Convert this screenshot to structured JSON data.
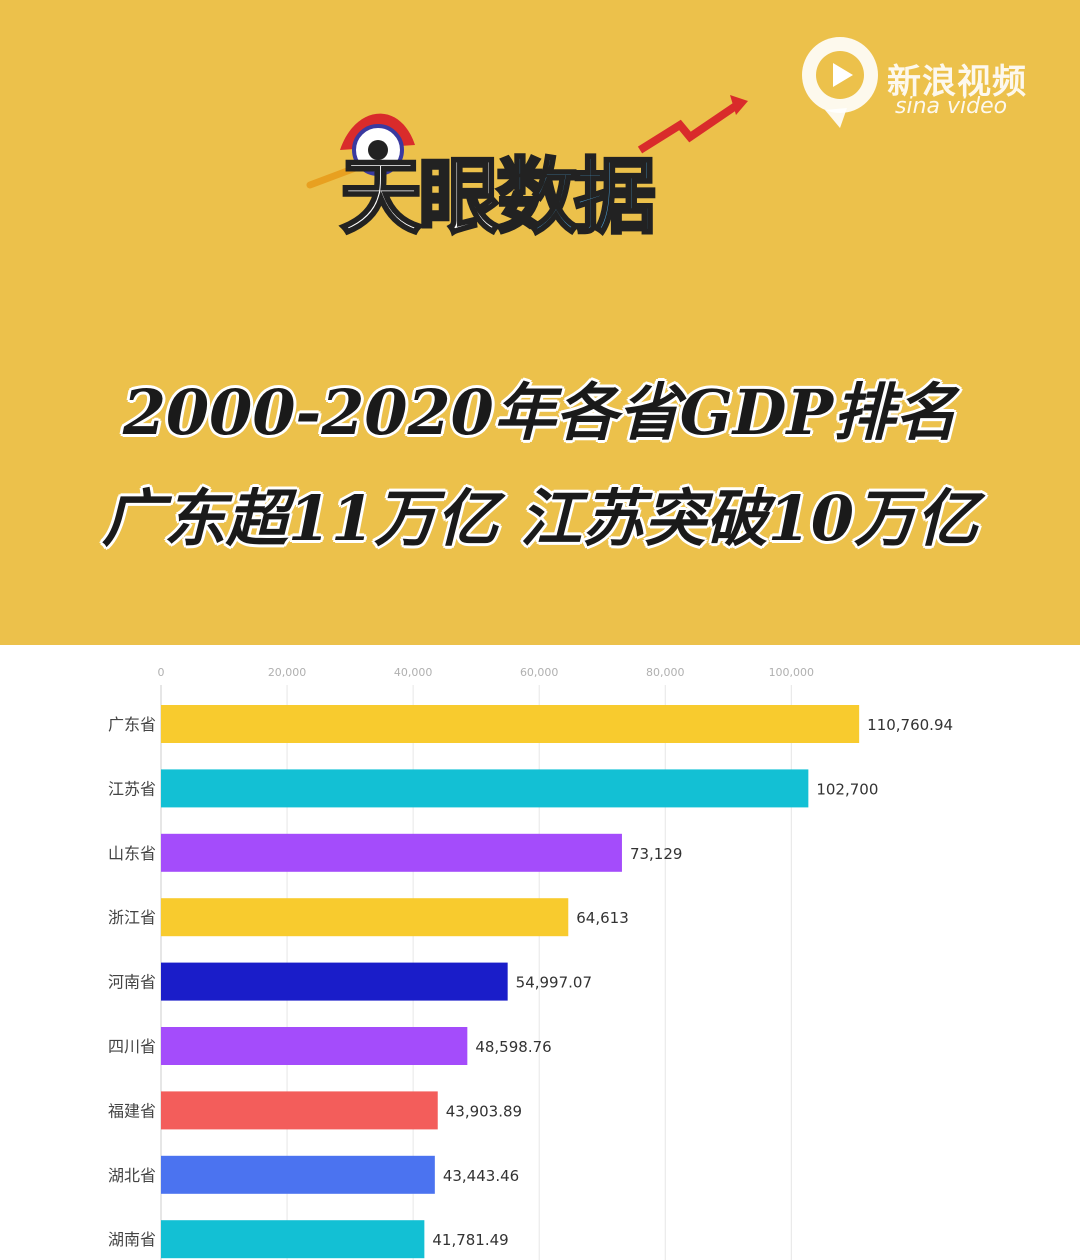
{
  "header": {
    "watermark_cn": "新浪视频",
    "watermark_en": "sina video",
    "logo_text_1": "天眼",
    "logo_text_2": "数据",
    "title_line1": "2000-2020年各省GDP排名",
    "title_line2": "广东超11万亿 江苏突破10万亿"
  },
  "chart_data": {
    "type": "bar",
    "orientation": "horizontal",
    "title": "",
    "xlabel": "",
    "ylabel": "",
    "xlim": [
      0,
      122000
    ],
    "x_ticks": [
      0,
      20000,
      40000,
      60000,
      80000,
      100000
    ],
    "x_tick_labels": [
      "0",
      "20,000",
      "40,000",
      "60,000",
      "80,000",
      "100,000"
    ],
    "grid": true,
    "categories": [
      "广东省",
      "江苏省",
      "山东省",
      "浙江省",
      "河南省",
      "四川省",
      "福建省",
      "湖北省",
      "湖南省"
    ],
    "values": [
      110760.94,
      102700,
      73129,
      64613,
      54997.07,
      48598.76,
      43903.89,
      43443.46,
      41781.49
    ],
    "value_labels": [
      "110,760.94",
      "102,700",
      "73,129",
      "64,613",
      "54,997.07",
      "48,598.76",
      "43,903.89",
      "43,443.46",
      "41,781.49"
    ],
    "colors": [
      "#f8cb2e",
      "#13c0d4",
      "#a44cfb",
      "#f8cb2e",
      "#1a1dc9",
      "#a44cfb",
      "#f35d5b",
      "#4b73f0",
      "#13c0d4"
    ]
  }
}
